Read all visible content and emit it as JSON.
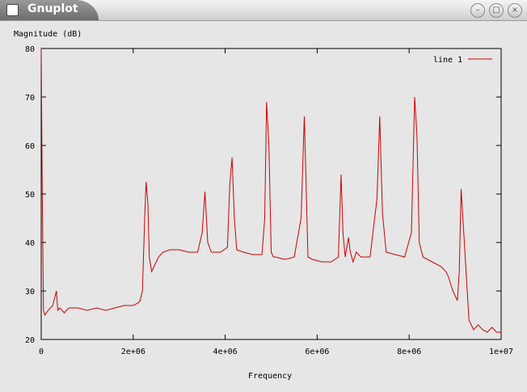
{
  "window": {
    "title": "Gnuplot",
    "icon": "window-icon",
    "buttons": [
      "minimize-icon",
      "maximize-icon",
      "close-icon"
    ]
  },
  "chart_data": {
    "type": "line",
    "title": "",
    "xlabel": "Frequency",
    "ylabel": "Magnitude (dB)",
    "xlim": [
      0,
      10000000
    ],
    "ylim": [
      20,
      80
    ],
    "xticks": [
      0,
      2000000,
      4000000,
      6000000,
      8000000,
      10000000
    ],
    "xtick_labels": [
      "0",
      "2e+06",
      "4e+06",
      "6e+06",
      "8e+06",
      "1e+07"
    ],
    "yticks": [
      20,
      30,
      40,
      50,
      60,
      70,
      80
    ],
    "ytick_labels": [
      "20",
      "30",
      "40",
      "50",
      "60",
      "70",
      "80"
    ],
    "grid": false,
    "legend_position": "top-right",
    "series": [
      {
        "name": "line 1",
        "color": "#cc0000",
        "x": [
          0,
          20000,
          50000,
          80000,
          150000,
          250000,
          330000,
          360000,
          400000,
          500000,
          600000,
          800000,
          1000000,
          1200000,
          1400000,
          1600000,
          1800000,
          2000000,
          2100000,
          2150000,
          2200000,
          2250000,
          2280000,
          2320000,
          2350000,
          2400000,
          2450000,
          2550000,
          2650000,
          2800000,
          3000000,
          3200000,
          3400000,
          3500000,
          3560000,
          3620000,
          3700000,
          3900000,
          4050000,
          4100000,
          4150000,
          4200000,
          4250000,
          4400000,
          4600000,
          4800000,
          4860000,
          4900000,
          4950000,
          5000000,
          5050000,
          5100000,
          5300000,
          5500000,
          5650000,
          5720000,
          5760000,
          5800000,
          5900000,
          6100000,
          6300000,
          6460000,
          6520000,
          6560000,
          6610000,
          6680000,
          6720000,
          6780000,
          6850000,
          6950000,
          7150000,
          7300000,
          7360000,
          7420000,
          7500000,
          7700000,
          7900000,
          8050000,
          8120000,
          8170000,
          8220000,
          8300000,
          8500000,
          8700000,
          8800000,
          8850000,
          8950000,
          9000000,
          9050000,
          9090000,
          9130000,
          9200000,
          9300000,
          9400000,
          9500000,
          9600000,
          9700000,
          9800000,
          9900000,
          10000000
        ],
        "y": [
          80,
          54,
          26,
          25,
          26,
          27,
          30,
          26,
          26.5,
          25.5,
          26.5,
          26.5,
          26,
          26.5,
          26,
          26.5,
          27,
          27,
          27.5,
          28,
          30,
          45,
          52.5,
          48,
          37,
          34,
          35,
          37,
          38,
          38.5,
          38.5,
          38,
          38,
          42,
          50.5,
          40,
          38,
          38,
          39,
          52,
          57.5,
          45,
          38.5,
          38,
          37.5,
          37.5,
          45,
          69,
          60,
          38,
          37,
          37,
          36.5,
          37,
          45,
          66,
          52,
          37,
          36.5,
          36,
          36,
          37,
          54,
          42,
          37,
          41,
          38,
          36,
          38,
          37,
          37,
          49,
          66,
          46,
          38,
          37.5,
          37,
          42,
          70,
          62,
          40,
          37,
          36,
          35,
          34,
          33,
          30,
          29,
          28,
          34,
          51,
          40,
          24,
          22,
          23,
          22,
          21.5,
          22.5,
          21.5,
          21.5
        ]
      }
    ]
  }
}
